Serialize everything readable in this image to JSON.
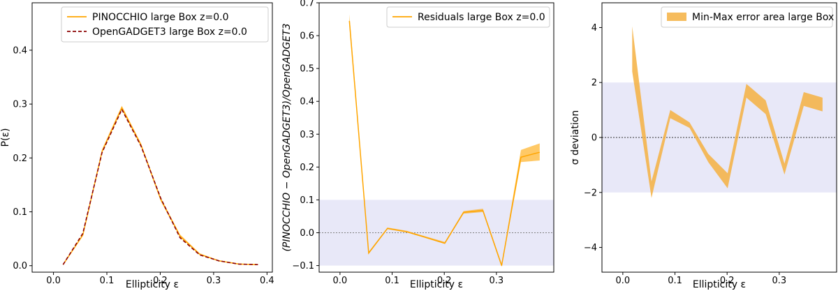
{
  "chart_data": [
    {
      "type": "line",
      "xlabel": "Ellipticity ε",
      "ylabel": "P(ε)",
      "xlim": [
        -0.04,
        0.41
      ],
      "ylim": [
        -0.012,
        0.488
      ],
      "xticks": [
        0.0,
        0.1,
        0.2,
        0.3,
        0.4
      ],
      "xtick_labels": [
        "0.0",
        "0.1",
        "0.2",
        "0.3",
        "0.4"
      ],
      "yticks": [
        0.0,
        0.1,
        0.2,
        0.3,
        0.4
      ],
      "ytick_labels": [
        "0.0",
        "0.1",
        "0.2",
        "0.3",
        "0.4"
      ],
      "grid": false,
      "legend_position": "top-right",
      "series": [
        {
          "name": "PINOCCHIO large Box z=0.0",
          "color": "#FFA500",
          "style": "solid",
          "x": [
            0.018,
            0.055,
            0.091,
            0.128,
            0.164,
            0.201,
            0.237,
            0.274,
            0.31,
            0.347,
            0.383
          ],
          "y": [
            0.002,
            0.057,
            0.212,
            0.293,
            0.224,
            0.123,
            0.055,
            0.021,
            0.009,
            0.003,
            0.002
          ],
          "band": [
            [
              0.002,
              0.003
            ],
            [
              0.055,
              0.059
            ],
            [
              0.209,
              0.216
            ],
            [
              0.29,
              0.297
            ],
            [
              0.221,
              0.227
            ],
            [
              0.12,
              0.126
            ],
            [
              0.053,
              0.058
            ],
            [
              0.02,
              0.023
            ],
            [
              0.008,
              0.01
            ],
            [
              0.003,
              0.004
            ],
            [
              0.001,
              0.002
            ]
          ]
        },
        {
          "name": "OpenGADGET3 large Box z=0.0",
          "color": "#8B0000",
          "style": "dashed",
          "x": [
            0.018,
            0.055,
            0.091,
            0.128,
            0.164,
            0.201,
            0.237,
            0.274,
            0.31,
            0.347,
            0.383
          ],
          "y": [
            0.002,
            0.06,
            0.21,
            0.29,
            0.222,
            0.125,
            0.052,
            0.02,
            0.009,
            0.003,
            0.002
          ]
        }
      ]
    },
    {
      "type": "line",
      "xlabel": "Ellipticity ε",
      "ylabel": "(PINOCCHIO − OpenGADGET3)/OpenGADGET3",
      "xlim": [
        -0.04,
        0.41
      ],
      "ylim": [
        -0.12,
        0.7
      ],
      "xticks": [
        0.0,
        0.1,
        0.2,
        0.3
      ],
      "xtick_labels": [
        "0.0",
        "0.1",
        "0.2",
        "0.3"
      ],
      "yticks": [
        -0.1,
        0.0,
        0.1,
        0.2,
        0.3,
        0.4,
        0.5,
        0.6,
        0.7
      ],
      "ytick_labels": [
        "−0.1",
        "0.0",
        "0.1",
        "0.2",
        "0.3",
        "0.4",
        "0.5",
        "0.6",
        "0.7"
      ],
      "grid": false,
      "legend_position": "top-right",
      "shaded_region": {
        "from": -0.1,
        "to": 0.1,
        "color": "#E8E8F8"
      },
      "reference_line": {
        "y": 0.0,
        "color": "#808080",
        "style": "dotted"
      },
      "series": [
        {
          "name": "Residuals large Box z=0.0",
          "color": "#FFA500",
          "style": "solid",
          "x": [
            0.018,
            0.055,
            0.091,
            0.128,
            0.164,
            0.201,
            0.237,
            0.274,
            0.31,
            0.347,
            0.383
          ],
          "y": [
            0.645,
            -0.062,
            0.013,
            0.003,
            -0.014,
            -0.032,
            0.062,
            0.068,
            -0.1,
            0.23,
            0.245
          ],
          "band": [
            [
              0.632,
              0.665
            ],
            [
              -0.064,
              -0.058
            ],
            [
              0.011,
              0.016
            ],
            [
              0.001,
              0.006
            ],
            [
              -0.016,
              -0.011
            ],
            [
              -0.034,
              -0.028
            ],
            [
              0.058,
              0.066
            ],
            [
              0.063,
              0.073
            ],
            [
              -0.104,
              -0.094
            ],
            [
              0.215,
              0.252
            ],
            [
              0.22,
              0.272
            ]
          ]
        }
      ]
    },
    {
      "type": "area",
      "xlabel": "Ellipticity ε",
      "ylabel": "σ deviation",
      "xlim": [
        -0.04,
        0.41
      ],
      "ylim": [
        -4.9,
        4.9
      ],
      "xticks": [
        0.0,
        0.1,
        0.2,
        0.3
      ],
      "xtick_labels": [
        "0.0",
        "0.1",
        "0.2",
        "0.3"
      ],
      "yticks": [
        -4,
        -2,
        0,
        2,
        4
      ],
      "ytick_labels": [
        "−4",
        "−2",
        "0",
        "2",
        "4"
      ],
      "grid": false,
      "legend_position": "top-right",
      "shaded_region": {
        "from": -2,
        "to": 2,
        "color": "#E8E8F8"
      },
      "reference_line": {
        "y": 0.0,
        "color": "#333333",
        "style": "dotted"
      },
      "series": [
        {
          "name": "Min-Max error area large Box",
          "color": "#F5B041",
          "style": "fill",
          "x": [
            0.018,
            0.055,
            0.091,
            0.128,
            0.164,
            0.201,
            0.237,
            0.274,
            0.31,
            0.347,
            0.383
          ],
          "band": [
            [
              2.4,
              4.05
            ],
            [
              -2.2,
              -1.6
            ],
            [
              0.7,
              1.0
            ],
            [
              0.35,
              0.55
            ],
            [
              -0.9,
              -0.6
            ],
            [
              -1.85,
              -1.3
            ],
            [
              1.45,
              1.95
            ],
            [
              0.85,
              1.35
            ],
            [
              -1.35,
              -0.95
            ],
            [
              1.15,
              1.65
            ],
            [
              0.95,
              1.45
            ]
          ]
        }
      ]
    }
  ]
}
